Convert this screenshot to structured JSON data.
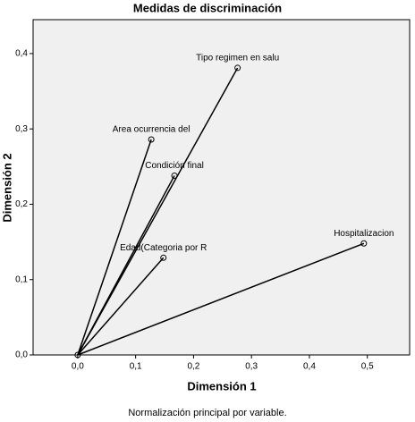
{
  "chart_data": {
    "type": "scatter",
    "title": "Medidas de discriminación",
    "x_label": "Dimensión 1",
    "y_label": "Dimensión 2",
    "note": "Normalización principal por variable.",
    "point_labels": [
      "Tipo regimen en salu",
      "Area ocurrencia del",
      "Condición final",
      "Edad(Categoria por R",
      "Hospitalizacion"
    ],
    "x": [
      0.276,
      0.127,
      0.167,
      0.148,
      0.494
    ],
    "values": [
      0.381,
      0.286,
      0.238,
      0.129,
      0.148
    ],
    "color": "#000000",
    "xlim": [
      -0.077,
      0.573
    ],
    "ylim": [
      0,
      0.445
    ],
    "xticks": [
      {
        "value": 0,
        "label": "0,0"
      },
      {
        "value": 0.1,
        "label": "0,1"
      },
      {
        "value": 0.2,
        "label": "0,2"
      },
      {
        "value": 0.3,
        "label": "0,3"
      },
      {
        "value": 0.4,
        "label": "0,4"
      },
      {
        "value": 0.5,
        "label": "0,5"
      }
    ],
    "yticks": [
      {
        "value": 0,
        "label": "0,0"
      },
      {
        "value": 0.1,
        "label": "0,1"
      },
      {
        "value": 0.2,
        "label": "0,2"
      },
      {
        "value": 0.3,
        "label": "0,3"
      },
      {
        "value": 0.4,
        "label": "0,4"
      }
    ],
    "lines_from_origin": true
  }
}
